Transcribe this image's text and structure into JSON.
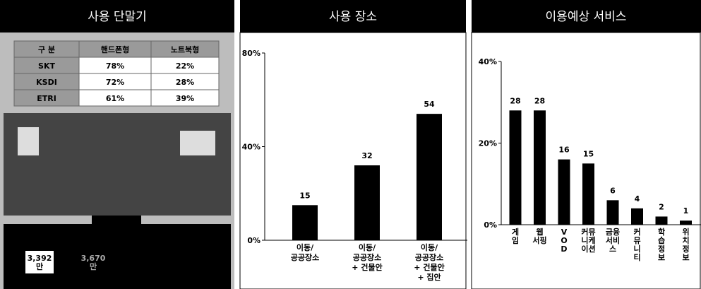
{
  "table": {
    "title": "사용 단말기",
    "header": [
      "구 분",
      "핸드폰형",
      "노트북형"
    ],
    "rows": [
      [
        "SKT",
        "78%",
        "22%"
      ],
      [
        "KSDI",
        "72%",
        "28%"
      ],
      [
        "ETRI",
        "61%",
        "39%"
      ]
    ],
    "figures": [
      "3,392\n만",
      "3,670\n만"
    ]
  },
  "chart_data": [
    {
      "type": "bar",
      "title": "사용 장소",
      "color": "#000000",
      "categories": [
        "이동/\n공공장소",
        "이동/\n공공장소\n+ 건물안",
        "이동/\n공공장소\n+ 건물안\n+ 집안"
      ],
      "values": [
        15,
        32,
        54
      ],
      "ylim": [
        0,
        80
      ],
      "yticks": [
        {
          "value": 0,
          "label": "0%"
        },
        {
          "value": 40,
          "label": "40%"
        },
        {
          "value": 80,
          "label": "80%"
        }
      ]
    },
    {
      "type": "bar",
      "title": "이용예상 서비스",
      "color": "#000000",
      "categories": [
        "게\n임",
        "웹\n서핑",
        "V\nO\nD",
        "커뮤\n니케\n이션",
        "금융\n서비\n스",
        "커\n뮤\n니\n티",
        "학\n습\n정\n보",
        "위\n치\n정\n보"
      ],
      "values": [
        28,
        28,
        16,
        15,
        6,
        4,
        2,
        1
      ],
      "ylim": [
        0,
        40
      ],
      "yticks": [
        {
          "value": 0,
          "label": "0%"
        },
        {
          "value": 20,
          "label": "20%"
        },
        {
          "value": 40,
          "label": "40%"
        }
      ]
    }
  ]
}
